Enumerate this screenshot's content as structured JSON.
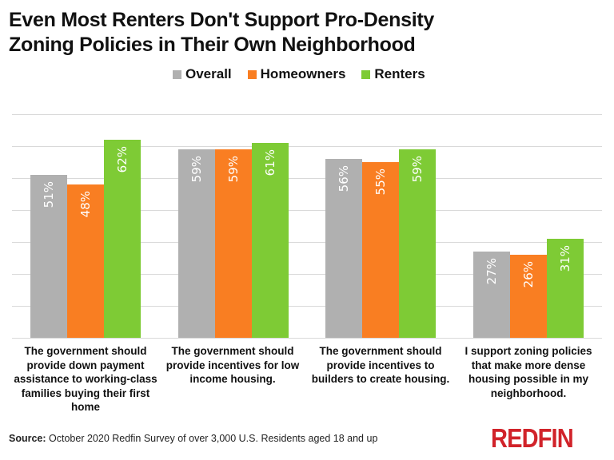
{
  "title_line1": "Even Most Renters Don't Support Pro-Density",
  "title_line2": "Zoning Policies in Their Own Neighborhood",
  "legend": [
    {
      "label": "Overall",
      "color": "#b0b0b0"
    },
    {
      "label": "Homeowners",
      "color": "#f97e22"
    },
    {
      "label": "Renters",
      "color": "#7ecb35"
    }
  ],
  "source_label": "Source:",
  "source_text": " October 2020 Redfin Survey of over 3,000 U.S. Residents aged 18 and up",
  "logo": "REDFIN",
  "categories": [
    "The government should provide down payment assistance to working-class families buying their first home",
    "The government should provide incentives for low income housing.",
    "The government should provide incentives to builders to create housing.",
    "I support zoning policies that make more dense housing possible in my neighborhood."
  ],
  "value_labels": {
    "overall": [
      "51%",
      "59%",
      "56%",
      "27%"
    ],
    "homeowners": [
      "48%",
      "59%",
      "55%",
      "26%"
    ],
    "renters": [
      "62%",
      "61%",
      "59%",
      "31%"
    ]
  },
  "chart_data": {
    "type": "bar",
    "title": "Even Most Renters Don't Support Pro-Density Zoning Policies in Their Own Neighborhood",
    "categories": [
      "The government should provide down payment assistance to working-class families buying their first home",
      "The government should provide incentives for low income housing.",
      "The government should provide incentives to builders to create housing.",
      "I support zoning policies that make more dense housing possible in my neighborhood."
    ],
    "series": [
      {
        "name": "Overall",
        "color": "#b0b0b0",
        "values": [
          51,
          59,
          56,
          27
        ]
      },
      {
        "name": "Homeowners",
        "color": "#f97e22",
        "values": [
          48,
          59,
          55,
          26
        ]
      },
      {
        "name": "Renters",
        "color": "#7ecb35",
        "values": [
          62,
          61,
          59,
          31
        ]
      }
    ],
    "xlabel": "",
    "ylabel": "",
    "ylim": [
      0,
      70
    ],
    "grid": true,
    "y_axis_labels_shown": false,
    "legend_position": "top",
    "value_format": "percent",
    "source": "October 2020 Redfin Survey of over 3,000 U.S. Residents aged 18 and up"
  }
}
